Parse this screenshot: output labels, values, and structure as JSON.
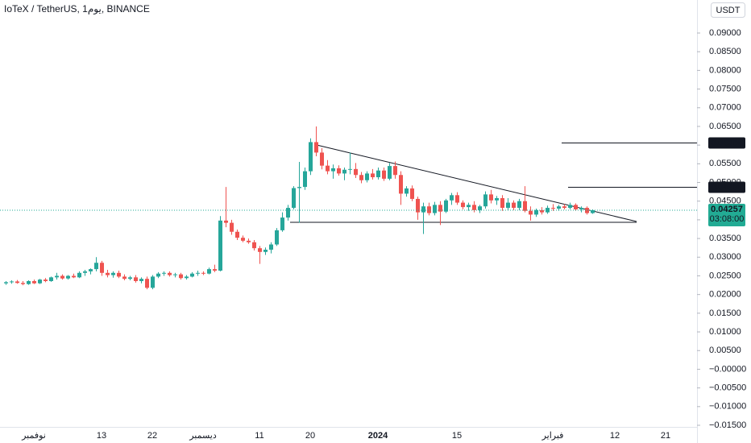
{
  "chart_data": {
    "type": "candlestick",
    "title": "IoTeX / TetherUS, 1يوم, BINANCE",
    "currency_button": "USDT",
    "up_color": "#26a69a",
    "down_color": "#ef5350",
    "categories": [
      null,
      null,
      null,
      null,
      null,
      "نوفمبر",
      null,
      null,
      null,
      null,
      null,
      null,
      null,
      null,
      null,
      null,
      null,
      "13",
      null,
      null,
      null,
      null,
      null,
      null,
      null,
      null,
      "22",
      null,
      null,
      null,
      null,
      null,
      null,
      null,
      null,
      "ديسمبر",
      null,
      null,
      null,
      null,
      null,
      null,
      null,
      null,
      null,
      "11",
      null,
      null,
      null,
      null,
      null,
      null,
      null,
      null,
      "20",
      null,
      null,
      null,
      null,
      null,
      null,
      null,
      null,
      null,
      null,
      null,
      "2024",
      null,
      null,
      null,
      null,
      null,
      null,
      null,
      null,
      null,
      null,
      null,
      null,
      null,
      "15",
      null,
      null,
      null,
      null,
      null,
      null,
      null,
      null,
      null,
      null,
      null,
      null,
      null,
      null,
      null,
      null,
      "فبراير",
      null,
      null,
      null,
      null,
      null,
      null,
      null,
      null,
      null,
      null,
      "12",
      null,
      null,
      null,
      null,
      null,
      null,
      null,
      null,
      "21",
      null
    ],
    "open": [
      0.023,
      0.0233,
      0.0235,
      0.0231,
      0.0228,
      0.0236,
      0.023,
      0.024,
      0.0236,
      0.0246,
      0.025,
      0.0243,
      0.025,
      0.0246,
      0.0258,
      0.0262,
      0.0268,
      0.0285,
      0.0258,
      0.0252,
      0.0258,
      0.0248,
      0.0242,
      0.0246,
      0.0236,
      0.0242,
      0.0218,
      0.0248,
      0.0256,
      0.0258,
      0.0252,
      0.0254,
      0.0244,
      0.0248,
      0.0256,
      0.0258,
      0.0256,
      0.0268,
      0.0264,
      0.0398,
      0.0392,
      0.0368,
      0.0352,
      0.0344,
      0.034,
      0.0324,
      0.0314,
      0.032,
      0.0334,
      0.0372,
      0.0406,
      0.0432,
      0.0485,
      0.0488,
      0.053,
      0.0608,
      0.058,
      0.0545,
      0.053,
      0.0538,
      0.0524,
      0.0534,
      0.0536,
      0.052,
      0.0506,
      0.0524,
      0.0514,
      0.0532,
      0.051,
      0.0544,
      0.052,
      0.047,
      0.0484,
      0.0456,
      0.042,
      0.0436,
      0.0418,
      0.044,
      0.0422,
      0.0452,
      0.0466,
      0.0446,
      0.0434,
      0.044,
      0.0426,
      0.0436,
      0.0468,
      0.0452,
      0.0458,
      0.0432,
      0.0446,
      0.0432,
      0.045,
      0.0424,
      0.0414,
      0.0426,
      0.042,
      0.0432,
      0.043,
      0.0436,
      0.0432,
      0.044,
      0.0428,
      0.0432,
      0.0418,
      null,
      null,
      null,
      null,
      null,
      null,
      null,
      null,
      null,
      null,
      null,
      null,
      null,
      null
    ],
    "high": [
      0.0236,
      0.0238,
      0.0239,
      0.0236,
      0.0238,
      0.024,
      0.0242,
      0.0244,
      0.0248,
      0.0258,
      0.0254,
      0.0252,
      0.0256,
      0.0262,
      0.0266,
      0.027,
      0.03,
      0.029,
      0.0266,
      0.0262,
      0.0264,
      0.0254,
      0.025,
      0.0252,
      0.0246,
      0.0248,
      0.0252,
      0.026,
      0.0262,
      0.0262,
      0.0258,
      0.0258,
      0.0252,
      0.026,
      0.0264,
      0.0262,
      0.0272,
      0.028,
      0.041,
      0.0488,
      0.04,
      0.0374,
      0.0358,
      0.035,
      0.0346,
      0.033,
      0.0326,
      0.034,
      0.0378,
      0.042,
      0.044,
      0.049,
      0.0555,
      0.054,
      0.0618,
      0.065,
      0.0592,
      0.056,
      0.0548,
      0.0546,
      0.054,
      0.058,
      0.0552,
      0.0528,
      0.053,
      0.0536,
      0.054,
      0.054,
      0.0552,
      0.0556,
      0.053,
      0.049,
      0.0492,
      0.0462,
      0.0446,
      0.0446,
      0.0448,
      0.045,
      0.0456,
      0.0472,
      0.0474,
      0.0452,
      0.0446,
      0.045,
      0.044,
      0.0476,
      0.048,
      0.0464,
      0.0466,
      0.0458,
      0.0452,
      0.0456,
      0.049,
      0.0436,
      0.043,
      0.0434,
      0.0438,
      0.0442,
      0.044,
      0.0442,
      0.0446,
      0.0444,
      0.0436,
      0.0436,
      0.0428,
      null,
      null,
      null,
      null,
      null,
      null,
      null,
      null,
      null,
      null,
      null,
      null,
      null,
      null
    ],
    "low": [
      0.0226,
      0.0229,
      0.0229,
      0.0225,
      0.0226,
      0.0228,
      0.0228,
      0.0233,
      0.0234,
      0.024,
      0.024,
      0.024,
      0.0244,
      0.0244,
      0.025,
      0.0254,
      0.0262,
      0.025,
      0.0246,
      0.0245,
      0.0244,
      0.0238,
      0.0238,
      0.0232,
      0.023,
      0.0214,
      0.0214,
      0.0244,
      0.025,
      0.0248,
      0.0246,
      0.024,
      0.024,
      0.0246,
      0.025,
      0.0252,
      0.0254,
      0.026,
      0.0262,
      0.038,
      0.036,
      0.0346,
      0.034,
      0.0336,
      0.0318,
      0.0282,
      0.0306,
      0.031,
      0.033,
      0.0368,
      0.0398,
      0.0428,
      0.0392,
      0.048,
      0.052,
      0.057,
      0.0535,
      0.0522,
      0.051,
      0.0518,
      0.0506,
      0.0522,
      0.0512,
      0.0498,
      0.05,
      0.0508,
      0.0508,
      0.0504,
      0.0506,
      0.051,
      0.044,
      0.0462,
      0.045,
      0.04,
      0.0362,
      0.0412,
      0.0412,
      0.0386,
      0.0418,
      0.044,
      0.044,
      0.0428,
      0.0424,
      0.042,
      0.0418,
      0.043,
      0.0444,
      0.044,
      0.0424,
      0.0426,
      0.0426,
      0.0426,
      0.042,
      0.0398,
      0.0408,
      0.0414,
      0.0416,
      0.0424,
      0.0424,
      0.0428,
      0.0428,
      0.0424,
      0.042,
      0.0414,
      0.0416,
      null,
      null,
      null,
      null,
      null,
      null,
      null,
      null,
      null,
      null,
      null,
      null,
      null,
      null
    ],
    "close": [
      0.0233,
      0.0235,
      0.0231,
      0.0228,
      0.0236,
      0.023,
      0.024,
      0.0236,
      0.0246,
      0.025,
      0.0243,
      0.025,
      0.0246,
      0.0258,
      0.0262,
      0.0268,
      0.0285,
      0.0258,
      0.0252,
      0.0258,
      0.0248,
      0.0242,
      0.0246,
      0.0236,
      0.0242,
      0.0218,
      0.0248,
      0.0256,
      0.0258,
      0.0252,
      0.0254,
      0.0244,
      0.0248,
      0.0256,
      0.0258,
      0.0256,
      0.0268,
      0.0264,
      0.0398,
      0.0392,
      0.0368,
      0.0352,
      0.0344,
      0.034,
      0.0324,
      0.0314,
      0.032,
      0.0334,
      0.0372,
      0.0406,
      0.0432,
      0.0485,
      0.0488,
      0.053,
      0.0608,
      0.058,
      0.0545,
      0.053,
      0.0538,
      0.0524,
      0.0534,
      0.0536,
      0.052,
      0.0506,
      0.0524,
      0.0514,
      0.0532,
      0.051,
      0.0544,
      0.052,
      0.047,
      0.0484,
      0.0456,
      0.042,
      0.0436,
      0.0418,
      0.044,
      0.0422,
      0.0452,
      0.0466,
      0.0446,
      0.0434,
      0.044,
      0.0426,
      0.0436,
      0.0468,
      0.0452,
      0.0458,
      0.0432,
      0.0446,
      0.0432,
      0.045,
      0.0424,
      0.0414,
      0.0426,
      0.042,
      0.0432,
      0.043,
      0.0436,
      0.0432,
      0.044,
      0.0428,
      0.0432,
      0.0418,
      0.04257,
      null,
      null,
      null,
      null,
      null,
      null,
      null,
      null,
      null,
      null,
      null,
      null,
      null,
      null
    ],
    "ylim": [
      -0.01543,
      0.09884
    ],
    "yticks": [
      {
        "value": 0.09,
        "label": "0.09000"
      },
      {
        "value": 0.085,
        "label": "0.08500"
      },
      {
        "value": 0.08,
        "label": "0.08000"
      },
      {
        "value": 0.075,
        "label": "0.07500"
      },
      {
        "value": 0.07,
        "label": "0.07000"
      },
      {
        "value": 0.065,
        "label": "0.06500"
      },
      {
        "value": 0.06,
        "label": "0.06000"
      },
      {
        "value": 0.055,
        "label": "0.05500"
      },
      {
        "value": 0.05,
        "label": "0.05000"
      },
      {
        "value": 0.045,
        "label": "0.04500"
      },
      {
        "value": 0.04,
        "label": "0.04000"
      },
      {
        "value": 0.035,
        "label": "0.03500"
      },
      {
        "value": 0.03,
        "label": "0.03000"
      },
      {
        "value": 0.025,
        "label": "0.02500"
      },
      {
        "value": 0.02,
        "label": "0.02000"
      },
      {
        "value": 0.015,
        "label": "0.01500"
      },
      {
        "value": 0.01,
        "label": "0.01000"
      },
      {
        "value": 0.005,
        "label": "0.00500"
      },
      {
        "value": 0,
        "label": "−0.00000"
      },
      {
        "value": -0.005,
        "label": "−0.00500"
      },
      {
        "value": -0.01,
        "label": "−0.01000"
      },
      {
        "value": -0.015,
        "label": "−0.01500"
      }
    ],
    "price_lines": [
      {
        "value": 0.06058,
        "label": "0.06058"
      },
      {
        "value": 0.04888,
        "label": "0.04888"
      }
    ],
    "last_price": {
      "value": 0.04257,
      "label": "0.04257",
      "countdown": "03:08:00",
      "color": "#22ab94"
    }
  }
}
